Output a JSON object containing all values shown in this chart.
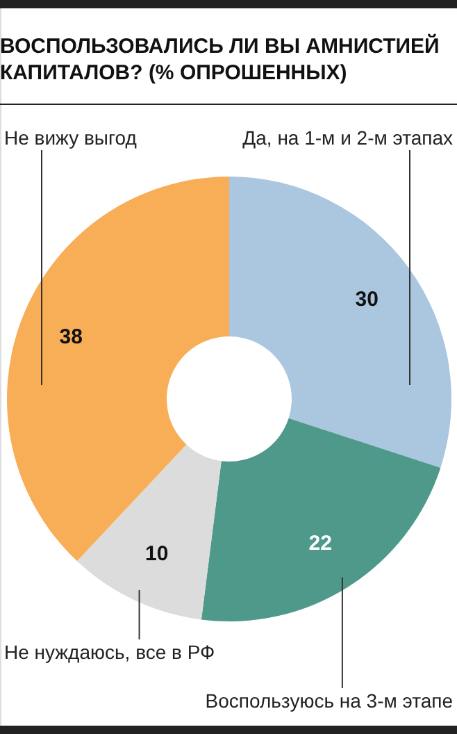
{
  "chart_data": {
    "type": "donut",
    "title": "ВОСПОЛЬЗОВАЛИСЬ ЛИ ВЫ АМНИСТИЕЙ КАПИТАЛОВ? (% ОПРОШЕННЫХ)",
    "categories": [
      "Да, на 1-м и 2-м этапах",
      "Воспользуюсь на 3-м этапе",
      "Не нуждаюсь, все в РФ",
      "Не вижу выгод"
    ],
    "values": [
      30,
      22,
      10,
      38
    ],
    "colors": [
      "#abc6df",
      "#4f998b",
      "#dddcdc",
      "#f8ad57"
    ],
    "data_labels": true
  }
}
